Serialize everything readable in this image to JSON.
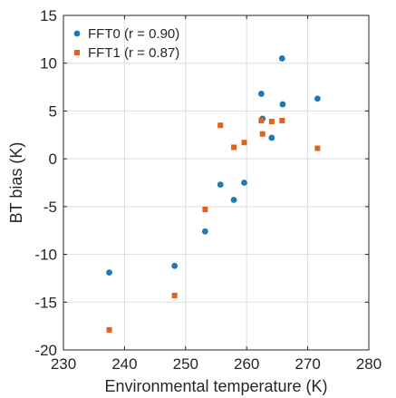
{
  "chart_data": {
    "type": "scatter",
    "xlabel": "Environmental temperature (K)",
    "ylabel": "BT bias (K)",
    "xlim": [
      230,
      280
    ],
    "ylim": [
      -20,
      15
    ],
    "xticks": [
      230,
      240,
      250,
      260,
      270,
      280
    ],
    "yticks": [
      -20,
      -15,
      -10,
      -5,
      0,
      5,
      10,
      15
    ],
    "xtick_labels": [
      "230",
      "240",
      "250",
      "260",
      "270",
      "280"
    ],
    "ytick_labels": [
      "-20",
      "-15",
      "-10",
      "-5",
      "0",
      "5",
      "10",
      "15"
    ],
    "grid": true,
    "legend_position": "top-left",
    "series": [
      {
        "name": "FFT0 (r = 0.90)",
        "color": "#1f77b4",
        "marker": "circle",
        "points": [
          [
            237.5,
            -11.9
          ],
          [
            248.2,
            -11.2
          ],
          [
            253.2,
            -7.6
          ],
          [
            255.7,
            -2.7
          ],
          [
            257.9,
            -4.3
          ],
          [
            259.6,
            -2.5
          ],
          [
            262.4,
            6.8
          ],
          [
            262.6,
            4.2
          ],
          [
            264.1,
            2.2
          ],
          [
            265.8,
            10.5
          ],
          [
            265.9,
            5.7
          ],
          [
            271.6,
            6.3
          ]
        ]
      },
      {
        "name": "FFT1 (r = 0.87)",
        "color": "#e1621b",
        "marker": "square",
        "points": [
          [
            237.5,
            -17.9
          ],
          [
            248.2,
            -14.3
          ],
          [
            253.2,
            -5.3
          ],
          [
            255.7,
            3.5
          ],
          [
            257.9,
            1.2
          ],
          [
            259.6,
            1.7
          ],
          [
            262.4,
            4.0
          ],
          [
            262.6,
            2.6
          ],
          [
            264.1,
            3.9
          ],
          [
            265.8,
            4.0
          ],
          [
            271.6,
            1.1
          ]
        ]
      }
    ]
  }
}
